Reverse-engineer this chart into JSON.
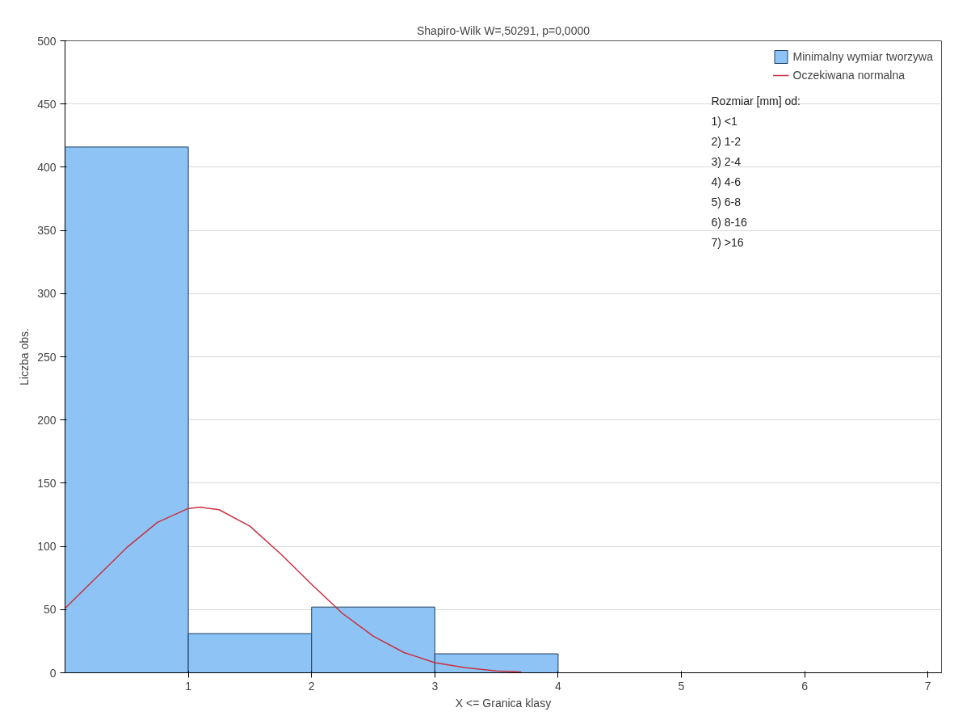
{
  "chart_data": {
    "type": "histogram",
    "title": "Shapiro-Wilk W=,50291, p=0,0000",
    "xlabel": "X <= Granica klasy",
    "ylabel": "Liczba obs.",
    "bins": [
      0,
      1,
      2,
      3,
      4,
      5,
      6,
      7
    ],
    "series": [
      {
        "name": "Minimalny wymiar tworzywa",
        "color": "#8ec3f5",
        "values": [
          416,
          31,
          52,
          15,
          0,
          0,
          0
        ]
      },
      {
        "type": "line",
        "name": "Oczekiwana normalna",
        "color": "#c8313f",
        "x": [
          0,
          0.25,
          0.5,
          0.75,
          1,
          1.1,
          1.25,
          1.5,
          1.75,
          2,
          2.25,
          2.5,
          2.75,
          3,
          3.25,
          3.5,
          3.7
        ],
        "values": [
          51,
          75,
          99,
          119,
          130,
          131,
          129,
          116,
          94,
          70,
          47,
          29,
          16,
          8,
          4,
          1.5,
          0.7
        ]
      }
    ],
    "xlim": [
      0,
      7.11
    ],
    "xticks": [
      1,
      2,
      3,
      4,
      5,
      6,
      7
    ],
    "ylim": [
      0,
      500
    ],
    "yticks": [
      0,
      50,
      100,
      150,
      200,
      250,
      300,
      350,
      400,
      450,
      500
    ],
    "grid": "y",
    "legend": "top right",
    "line_style": "solid",
    "marker": "none",
    "annotations": [
      "Rozmiar [mm] od:",
      "1) <1",
      "2) 1-2",
      "3) 2-4",
      "4) 4-6",
      "5) 6-8",
      "6) 8-16",
      "7) >16"
    ]
  }
}
